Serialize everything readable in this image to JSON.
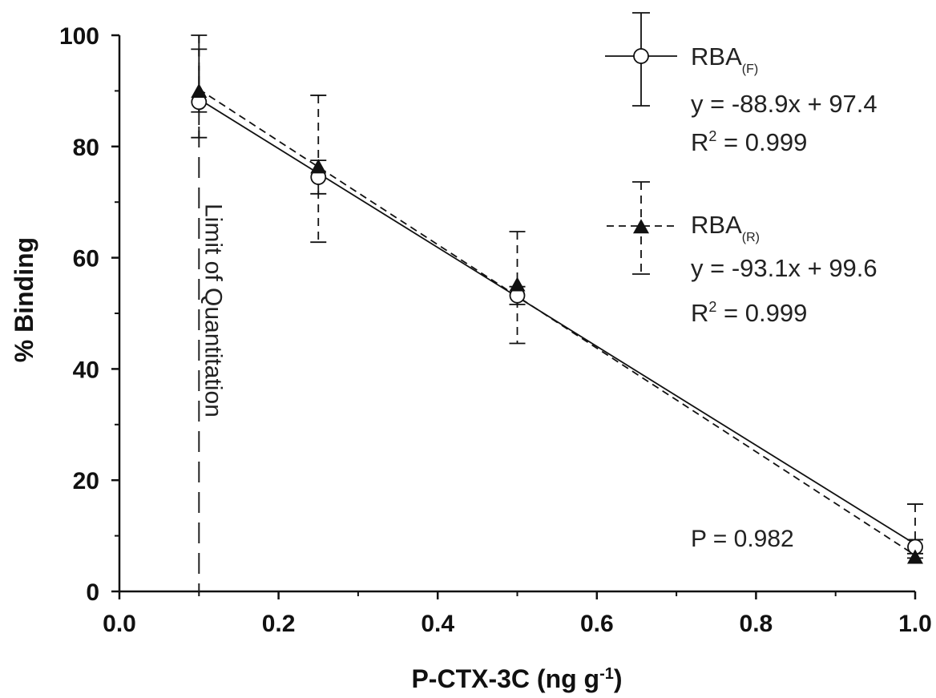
{
  "chart_data": {
    "type": "scatter",
    "xlabel": "P-CTX-3C (ng g",
    "xlabel_sup": "-1",
    "xlabel_end": ")",
    "ylabel": "% Binding",
    "xlim": [
      0.0,
      1.0
    ],
    "ylim": [
      0,
      100
    ],
    "x_ticks": [
      "0.0",
      "0.2",
      "0.4",
      "0.6",
      "0.8",
      "1.0"
    ],
    "y_ticks": [
      "0",
      "20",
      "40",
      "60",
      "80",
      "100"
    ],
    "series": [
      {
        "name": "RBA",
        "subscript": "(F)",
        "marker": "open-circle",
        "line": "solid",
        "x": [
          0.1,
          0.25,
          0.5,
          1.0
        ],
        "y": [
          88.0,
          74.5,
          53.2,
          8.0
        ],
        "err_upper": [
          97.5,
          77.5,
          54.8,
          9.3
        ],
        "err_lower": [
          86.2,
          71.5,
          51.6,
          6.8
        ],
        "fit": {
          "slope": -88.9,
          "intercept": 97.4
        },
        "equation": "y = -88.9x + 97.4",
        "r2_prefix": "R",
        "r2_value": " = 0.999"
      },
      {
        "name": "RBA",
        "subscript": "(R)",
        "marker": "filled-triangle",
        "line": "dashed",
        "x": [
          0.1,
          0.25,
          0.5,
          1.0
        ],
        "y": [
          89.8,
          76.2,
          55.0,
          6.0
        ],
        "err_upper": [
          100.0,
          89.2,
          64.7,
          15.7
        ],
        "err_lower": [
          81.6,
          62.8,
          44.6,
          6.0
        ],
        "fit": {
          "slope": -93.1,
          "intercept": 99.6
        },
        "equation": "y = -93.1x + 99.6",
        "r2_prefix": "R",
        "r2_value": " = 0.999"
      }
    ],
    "annotations": {
      "loq_x": 0.1,
      "loq_label": "Limit of Quantitation",
      "p_value": "P = 0.982"
    },
    "legend_position": "top-right"
  }
}
